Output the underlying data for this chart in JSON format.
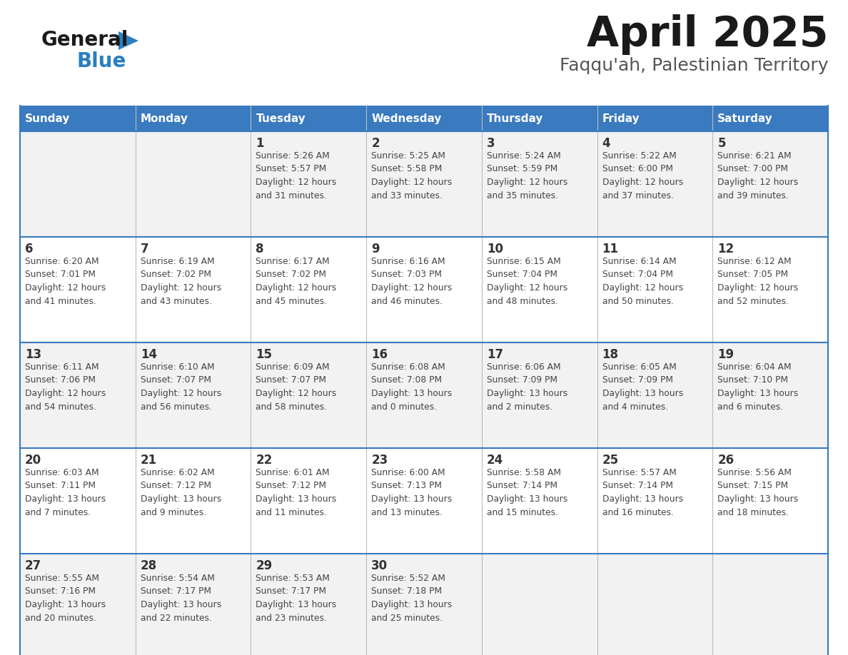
{
  "title": "April 2025",
  "subtitle": "Faqqu'ah, Palestinian Territory",
  "header_bg": "#3a7abf",
  "header_text_color": "#ffffff",
  "cell_bg_odd": "#f2f2f2",
  "cell_bg_even": "#ffffff",
  "border_color": "#3a7abf",
  "divider_color": "#bbbbbb",
  "day_names": [
    "Sunday",
    "Monday",
    "Tuesday",
    "Wednesday",
    "Thursday",
    "Friday",
    "Saturday"
  ],
  "weeks": [
    [
      {
        "day": "",
        "sunrise": "",
        "sunset": "",
        "daylight": ""
      },
      {
        "day": "",
        "sunrise": "",
        "sunset": "",
        "daylight": ""
      },
      {
        "day": "1",
        "sunrise": "Sunrise: 5:26 AM",
        "sunset": "Sunset: 5:57 PM",
        "daylight": "Daylight: 12 hours\nand 31 minutes."
      },
      {
        "day": "2",
        "sunrise": "Sunrise: 5:25 AM",
        "sunset": "Sunset: 5:58 PM",
        "daylight": "Daylight: 12 hours\nand 33 minutes."
      },
      {
        "day": "3",
        "sunrise": "Sunrise: 5:24 AM",
        "sunset": "Sunset: 5:59 PM",
        "daylight": "Daylight: 12 hours\nand 35 minutes."
      },
      {
        "day": "4",
        "sunrise": "Sunrise: 5:22 AM",
        "sunset": "Sunset: 6:00 PM",
        "daylight": "Daylight: 12 hours\nand 37 minutes."
      },
      {
        "day": "5",
        "sunrise": "Sunrise: 6:21 AM",
        "sunset": "Sunset: 7:00 PM",
        "daylight": "Daylight: 12 hours\nand 39 minutes."
      }
    ],
    [
      {
        "day": "6",
        "sunrise": "Sunrise: 6:20 AM",
        "sunset": "Sunset: 7:01 PM",
        "daylight": "Daylight: 12 hours\nand 41 minutes."
      },
      {
        "day": "7",
        "sunrise": "Sunrise: 6:19 AM",
        "sunset": "Sunset: 7:02 PM",
        "daylight": "Daylight: 12 hours\nand 43 minutes."
      },
      {
        "day": "8",
        "sunrise": "Sunrise: 6:17 AM",
        "sunset": "Sunset: 7:02 PM",
        "daylight": "Daylight: 12 hours\nand 45 minutes."
      },
      {
        "day": "9",
        "sunrise": "Sunrise: 6:16 AM",
        "sunset": "Sunset: 7:03 PM",
        "daylight": "Daylight: 12 hours\nand 46 minutes."
      },
      {
        "day": "10",
        "sunrise": "Sunrise: 6:15 AM",
        "sunset": "Sunset: 7:04 PM",
        "daylight": "Daylight: 12 hours\nand 48 minutes."
      },
      {
        "day": "11",
        "sunrise": "Sunrise: 6:14 AM",
        "sunset": "Sunset: 7:04 PM",
        "daylight": "Daylight: 12 hours\nand 50 minutes."
      },
      {
        "day": "12",
        "sunrise": "Sunrise: 6:12 AM",
        "sunset": "Sunset: 7:05 PM",
        "daylight": "Daylight: 12 hours\nand 52 minutes."
      }
    ],
    [
      {
        "day": "13",
        "sunrise": "Sunrise: 6:11 AM",
        "sunset": "Sunset: 7:06 PM",
        "daylight": "Daylight: 12 hours\nand 54 minutes."
      },
      {
        "day": "14",
        "sunrise": "Sunrise: 6:10 AM",
        "sunset": "Sunset: 7:07 PM",
        "daylight": "Daylight: 12 hours\nand 56 minutes."
      },
      {
        "day": "15",
        "sunrise": "Sunrise: 6:09 AM",
        "sunset": "Sunset: 7:07 PM",
        "daylight": "Daylight: 12 hours\nand 58 minutes."
      },
      {
        "day": "16",
        "sunrise": "Sunrise: 6:08 AM",
        "sunset": "Sunset: 7:08 PM",
        "daylight": "Daylight: 13 hours\nand 0 minutes."
      },
      {
        "day": "17",
        "sunrise": "Sunrise: 6:06 AM",
        "sunset": "Sunset: 7:09 PM",
        "daylight": "Daylight: 13 hours\nand 2 minutes."
      },
      {
        "day": "18",
        "sunrise": "Sunrise: 6:05 AM",
        "sunset": "Sunset: 7:09 PM",
        "daylight": "Daylight: 13 hours\nand 4 minutes."
      },
      {
        "day": "19",
        "sunrise": "Sunrise: 6:04 AM",
        "sunset": "Sunset: 7:10 PM",
        "daylight": "Daylight: 13 hours\nand 6 minutes."
      }
    ],
    [
      {
        "day": "20",
        "sunrise": "Sunrise: 6:03 AM",
        "sunset": "Sunset: 7:11 PM",
        "daylight": "Daylight: 13 hours\nand 7 minutes."
      },
      {
        "day": "21",
        "sunrise": "Sunrise: 6:02 AM",
        "sunset": "Sunset: 7:12 PM",
        "daylight": "Daylight: 13 hours\nand 9 minutes."
      },
      {
        "day": "22",
        "sunrise": "Sunrise: 6:01 AM",
        "sunset": "Sunset: 7:12 PM",
        "daylight": "Daylight: 13 hours\nand 11 minutes."
      },
      {
        "day": "23",
        "sunrise": "Sunrise: 6:00 AM",
        "sunset": "Sunset: 7:13 PM",
        "daylight": "Daylight: 13 hours\nand 13 minutes."
      },
      {
        "day": "24",
        "sunrise": "Sunrise: 5:58 AM",
        "sunset": "Sunset: 7:14 PM",
        "daylight": "Daylight: 13 hours\nand 15 minutes."
      },
      {
        "day": "25",
        "sunrise": "Sunrise: 5:57 AM",
        "sunset": "Sunset: 7:14 PM",
        "daylight": "Daylight: 13 hours\nand 16 minutes."
      },
      {
        "day": "26",
        "sunrise": "Sunrise: 5:56 AM",
        "sunset": "Sunset: 7:15 PM",
        "daylight": "Daylight: 13 hours\nand 18 minutes."
      }
    ],
    [
      {
        "day": "27",
        "sunrise": "Sunrise: 5:55 AM",
        "sunset": "Sunset: 7:16 PM",
        "daylight": "Daylight: 13 hours\nand 20 minutes."
      },
      {
        "day": "28",
        "sunrise": "Sunrise: 5:54 AM",
        "sunset": "Sunset: 7:17 PM",
        "daylight": "Daylight: 13 hours\nand 22 minutes."
      },
      {
        "day": "29",
        "sunrise": "Sunrise: 5:53 AM",
        "sunset": "Sunset: 7:17 PM",
        "daylight": "Daylight: 13 hours\nand 23 minutes."
      },
      {
        "day": "30",
        "sunrise": "Sunrise: 5:52 AM",
        "sunset": "Sunset: 7:18 PM",
        "daylight": "Daylight: 13 hours\nand 25 minutes."
      },
      {
        "day": "",
        "sunrise": "",
        "sunset": "",
        "daylight": ""
      },
      {
        "day": "",
        "sunrise": "",
        "sunset": "",
        "daylight": ""
      },
      {
        "day": "",
        "sunrise": "",
        "sunset": "",
        "daylight": ""
      }
    ]
  ],
  "logo_color_general": "#1a1a1a",
  "logo_color_blue": "#2a7fc1",
  "title_color": "#1a1a1a",
  "subtitle_color": "#555555",
  "title_fontsize": 42,
  "subtitle_fontsize": 18,
  "header_fontsize": 11,
  "day_num_fontsize": 12,
  "cell_text_fontsize": 8.8
}
